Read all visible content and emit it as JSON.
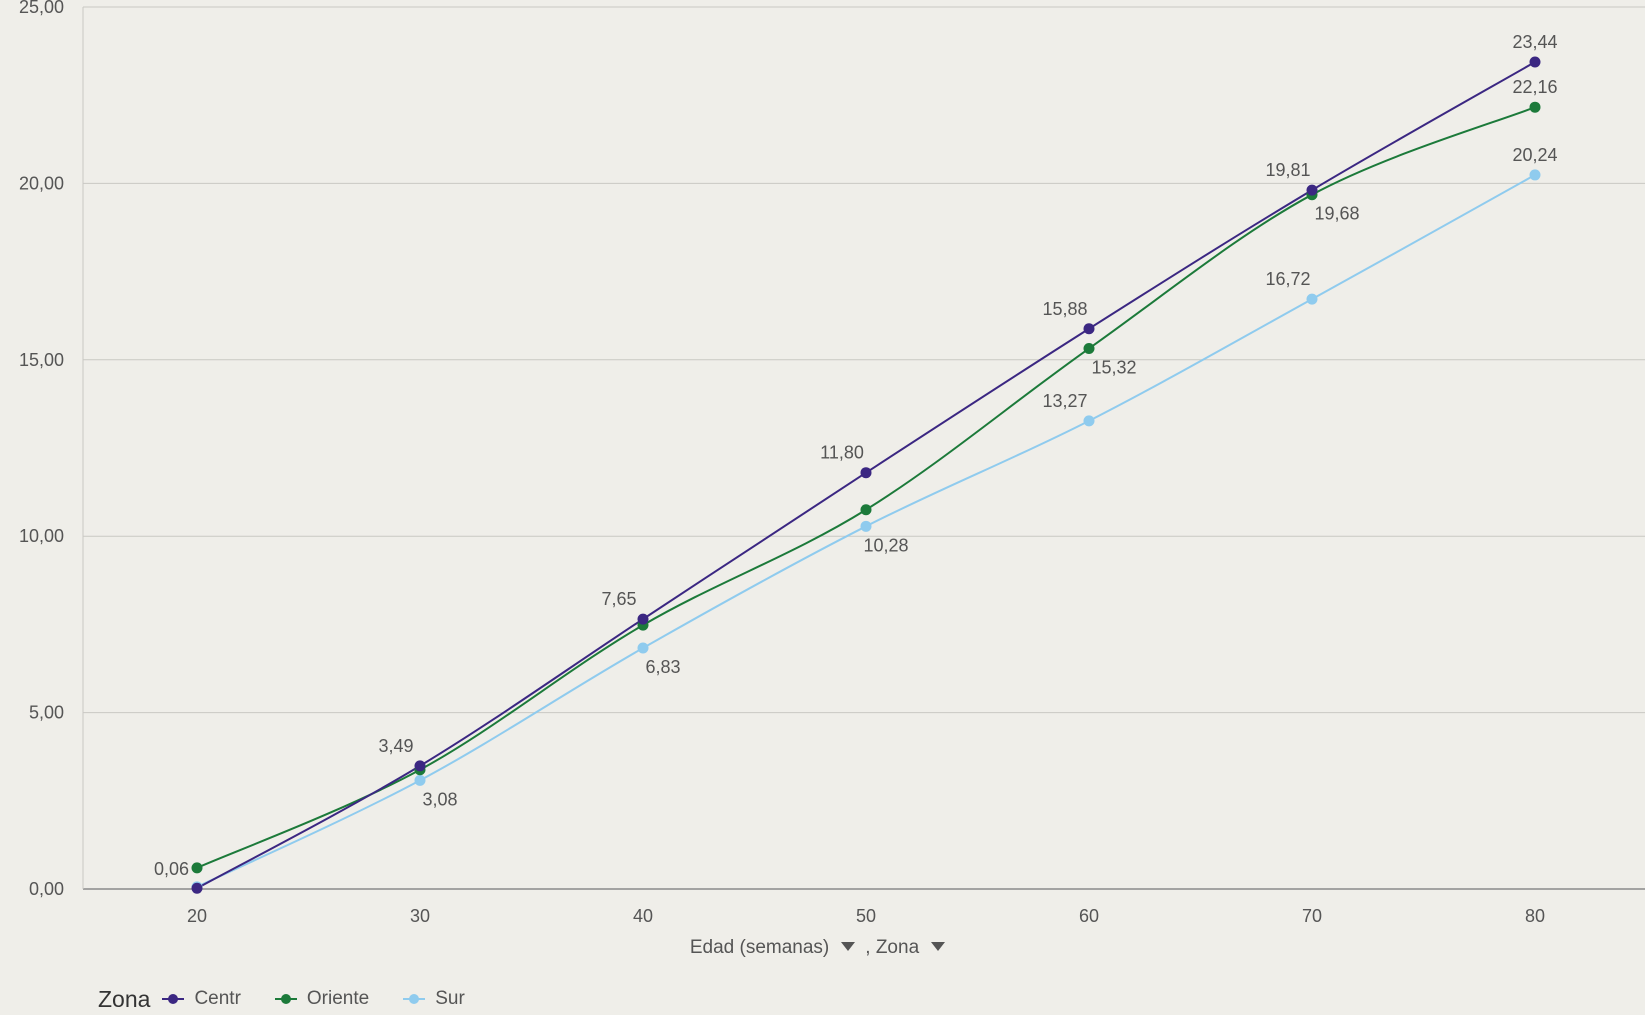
{
  "chart_data": {
    "type": "line",
    "x": [
      20,
      30,
      40,
      50,
      60,
      70,
      80
    ],
    "xlabel": "Edad (semanas)",
    "xlabel_extra": ", Zona",
    "ylim": [
      0,
      25
    ],
    "y_ticks": [
      "0,00",
      "5,00",
      "10,00",
      "15,00",
      "20,00",
      "25,00"
    ],
    "y_tick_values": [
      0,
      5,
      10,
      15,
      20,
      25
    ],
    "x_ticks": [
      "20",
      "30",
      "40",
      "50",
      "60",
      "70",
      "80"
    ],
    "grid": true,
    "legend_position": "bottom-left",
    "legend_title": "Zona",
    "series": [
      {
        "name": "Centr",
        "color": "#3b2782",
        "values": [
          0.02,
          3.49,
          7.65,
          11.8,
          15.88,
          19.81,
          23.44
        ],
        "labels": [
          "",
          "3,49",
          "7,65",
          "11,80",
          "15,88",
          "19,81",
          "23,44"
        ]
      },
      {
        "name": "Oriente",
        "color": "#1c7a3a",
        "values": [
          0.6,
          3.38,
          7.48,
          10.75,
          15.32,
          19.68,
          22.16
        ],
        "labels": [
          "",
          "",
          "",
          "",
          "15,32",
          "19,68",
          "22,16"
        ]
      },
      {
        "name": "Sur",
        "color": "#8fcbee",
        "values": [
          0.06,
          3.08,
          6.83,
          10.28,
          13.27,
          16.72,
          20.24
        ],
        "labels": [
          "0,06",
          "3,08",
          "6,83",
          "10,28",
          "13,27",
          "16,72",
          "20,24"
        ]
      }
    ]
  }
}
